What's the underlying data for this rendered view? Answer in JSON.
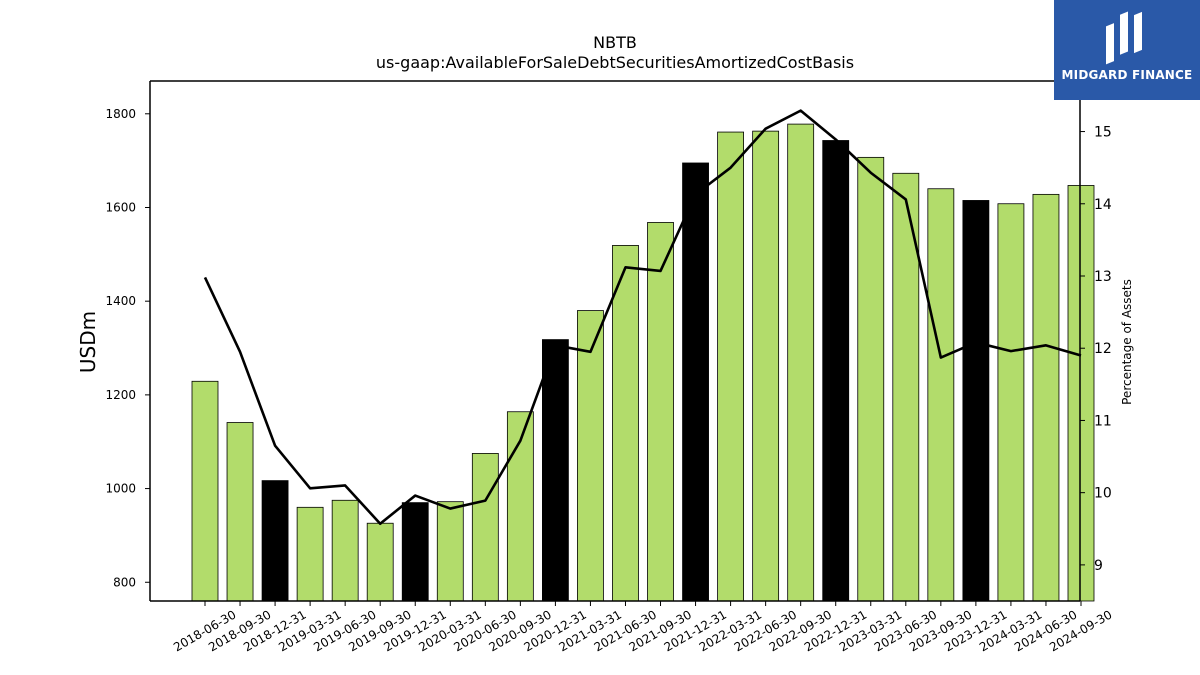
{
  "chart_data": {
    "type": "bar",
    "title": "NBTB",
    "subtitle": "us-gaap:AvailableForSaleDebtSecuritiesAmortizedCostBasis",
    "ylabel": "USDm",
    "ylabel_right": "Percentage of Assets",
    "ylim": [
      760,
      1870
    ],
    "ylim_right": [
      8.5,
      15.7
    ],
    "yticks": [
      800,
      1000,
      1200,
      1400,
      1600,
      1800
    ],
    "yticks_right": [
      9,
      10,
      11,
      12,
      13,
      14,
      15
    ],
    "bar_color": "#b2dc6b",
    "highlight_color": "#000000",
    "line_color": "#000000",
    "categories": [
      "2018-06-30",
      "2018-09-30",
      "2018-12-31",
      "2019-03-31",
      "2019-06-30",
      "2019-09-30",
      "2019-12-31",
      "2020-03-31",
      "2020-06-30",
      "2020-09-30",
      "2020-12-31",
      "2021-03-31",
      "2021-06-30",
      "2021-09-30",
      "2021-12-31",
      "2022-03-31",
      "2022-06-30",
      "2022-09-30",
      "2022-12-31",
      "2023-03-31",
      "2023-06-30",
      "2023-09-30",
      "2023-12-31",
      "2024-03-31",
      "2024-06-30",
      "2024-09-30"
    ],
    "series": [
      {
        "values": [
          1229,
          1141,
          1017,
          960,
          975,
          926,
          970,
          972,
          1075,
          1164,
          1318,
          1380,
          1519,
          1568,
          1695,
          1761,
          1763,
          1778,
          1743,
          1707,
          1673,
          1640,
          1615,
          1608,
          1628,
          1647
        ]
      },
      {
        "values": [
          12.98,
          11.95,
          10.65,
          10.06,
          10.1,
          9.57,
          9.96,
          9.78,
          9.89,
          10.72,
          12.04,
          11.95,
          13.12,
          13.07,
          14.13,
          14.5,
          15.04,
          15.29,
          14.89,
          14.43,
          14.06,
          11.87,
          12.08,
          11.96,
          12.04,
          11.9
        ]
      }
    ],
    "highlighted": [
      false,
      false,
      true,
      false,
      false,
      false,
      true,
      false,
      false,
      false,
      true,
      false,
      false,
      false,
      true,
      false,
      false,
      false,
      true,
      false,
      false,
      false,
      true,
      false,
      false,
      false
    ]
  },
  "logo": {
    "text": "MIDGARD FINANCE",
    "background": "#2a59a8"
  }
}
